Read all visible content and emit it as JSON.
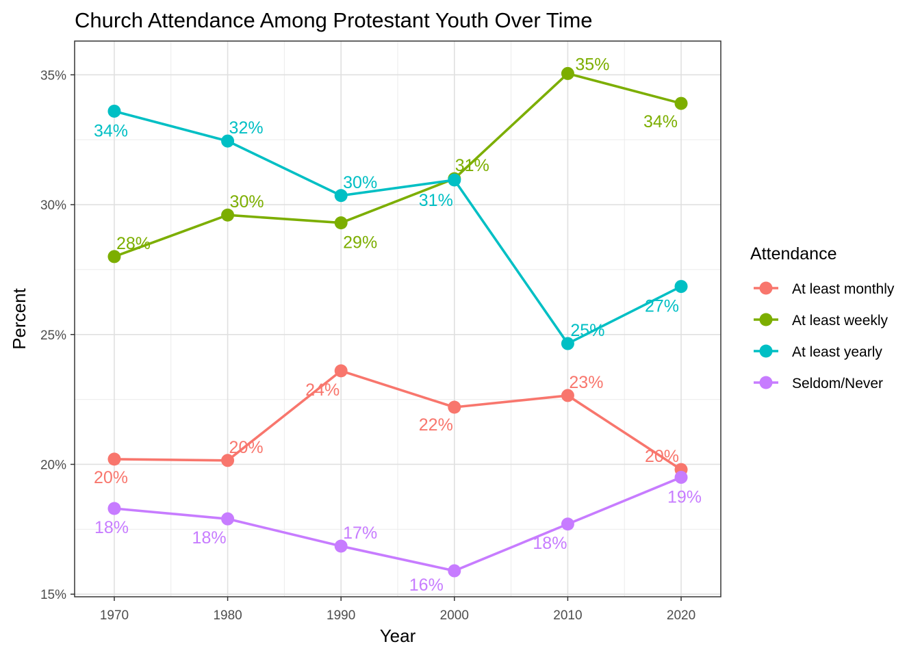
{
  "chart_data": {
    "type": "line",
    "title": "Church Attendance Among Protestant Youth Over Time",
    "xlabel": "Year",
    "ylabel": "Percent",
    "x": [
      1970,
      1980,
      1990,
      2000,
      2010,
      2020
    ],
    "xlim": [
      1966.5,
      2023.5
    ],
    "ylim": [
      14.9,
      36.3
    ],
    "y_ticks": [
      15,
      20,
      25,
      30,
      35
    ],
    "y_tick_labels": [
      "15%",
      "20%",
      "25%",
      "30%",
      "35%"
    ],
    "x_tick_labels": [
      "1970",
      "1980",
      "1990",
      "2000",
      "2010",
      "2020"
    ],
    "grid": true,
    "legend": {
      "title": "Attendance",
      "position": "right"
    },
    "series": [
      {
        "name": "At least monthly",
        "color": "#F8766D",
        "values": [
          20.2,
          20.15,
          23.6,
          22.2,
          22.65,
          19.8
        ],
        "labels": [
          "20%",
          "20%",
          "24%",
          "22%",
          "23%",
          "20%"
        ]
      },
      {
        "name": "At least weekly",
        "color": "#7CAE00",
        "values": [
          28.0,
          29.6,
          29.3,
          31.0,
          35.05,
          33.9
        ],
        "labels": [
          "28%",
          "30%",
          "29%",
          "31%",
          "35%",
          "34%"
        ]
      },
      {
        "name": "At least yearly",
        "color": "#00BFC4",
        "values": [
          33.6,
          32.45,
          30.35,
          30.95,
          24.65,
          26.85
        ],
        "labels": [
          "34%",
          "32%",
          "30%",
          "31%",
          "25%",
          "27%"
        ]
      },
      {
        "name": "Seldom/Never",
        "color": "#C77CFF",
        "values": [
          18.3,
          17.9,
          16.85,
          15.9,
          17.7,
          19.5
        ],
        "labels": [
          "18%",
          "18%",
          "17%",
          "16%",
          "18%",
          "19%"
        ]
      }
    ]
  }
}
